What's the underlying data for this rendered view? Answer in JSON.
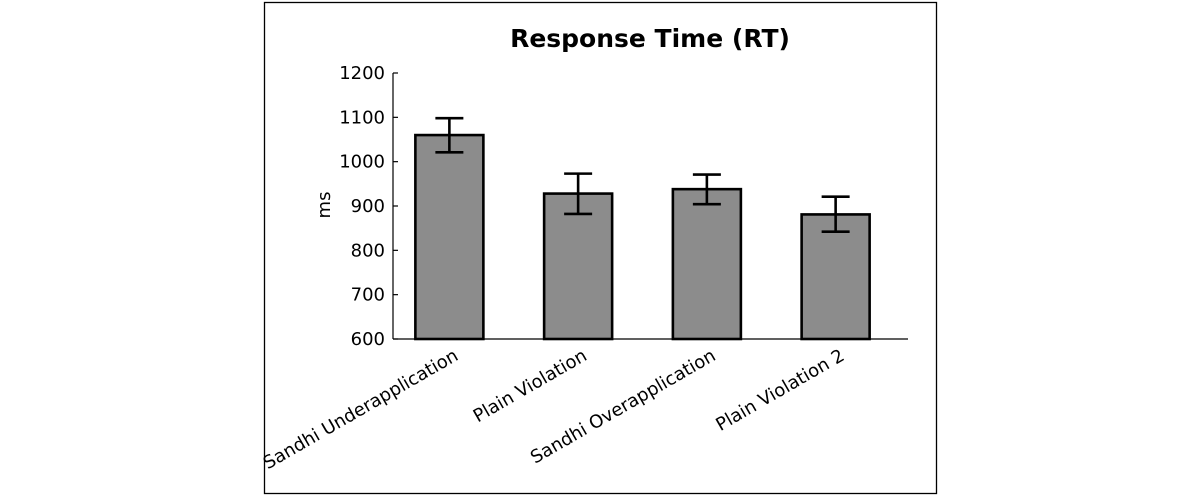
{
  "chart_data": {
    "type": "bar",
    "title": "Response Time (RT)",
    "xlabel": "",
    "ylabel": "ms",
    "ylim": [
      600,
      1200
    ],
    "yticks": [
      600,
      700,
      800,
      900,
      1000,
      1100,
      1200
    ],
    "categories": [
      "Sandhi Underapplication",
      "Plain Violation",
      "Sandhi Overapplication",
      "Plain Violation 2"
    ],
    "values": [
      1060,
      928,
      938,
      881
    ],
    "error_low": [
      1021,
      882,
      904,
      842
    ],
    "error_high": [
      1098,
      973,
      971,
      921
    ],
    "grid": false,
    "legend": "none",
    "colors": {
      "bar_fill": "#8c8c8c",
      "bar_stroke": "#000000",
      "axis": "#000000",
      "frame": "#000000"
    }
  }
}
